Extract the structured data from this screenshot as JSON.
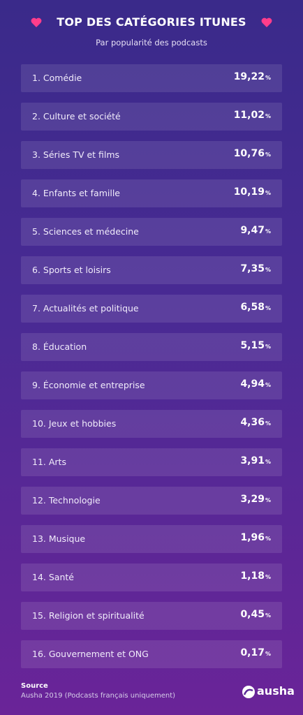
{
  "header": {
    "title": "TOP DES CATÉGORIES ITUNES",
    "subtitle": "Par popularité des podcasts"
  },
  "rows": [
    {
      "label": "1. Comédie",
      "value": "19,22",
      "unit": "%"
    },
    {
      "label": "2. Culture et société",
      "value": "11,02",
      "unit": "%"
    },
    {
      "label": "3. Séries TV et films",
      "value": "10,76",
      "unit": "%"
    },
    {
      "label": "4. Enfants et famille",
      "value": "10,19",
      "unit": "%"
    },
    {
      "label": "5. Sciences et médecine",
      "value": "9,47",
      "unit": "%"
    },
    {
      "label": "6. Sports et loisirs",
      "value": "7,35",
      "unit": "%"
    },
    {
      "label": "7. Actualités et politique",
      "value": "6,58",
      "unit": "%"
    },
    {
      "label": "8. Éducation",
      "value": "5,15",
      "unit": "%"
    },
    {
      "label": "9. Économie et entreprise",
      "value": "4,94",
      "unit": "%"
    },
    {
      "label": "10. Jeux et hobbies",
      "value": "4,36",
      "unit": "%"
    },
    {
      "label": "11. Arts",
      "value": "3,91",
      "unit": "%"
    },
    {
      "label": "12. Technologie",
      "value": "3,29",
      "unit": "%"
    },
    {
      "label": "13. Musique",
      "value": "1,96",
      "unit": "%"
    },
    {
      "label": "14. Santé",
      "value": "1,18",
      "unit": "%"
    },
    {
      "label": "15. Religion et spiritualité",
      "value": "0,45",
      "unit": "%"
    },
    {
      "label": "16. Gouvernement et ONG",
      "value": "0,17",
      "unit": "%"
    }
  ],
  "footer": {
    "source_title": "Source",
    "source_text": "Ausha 2019 (Podcasts français uniquement)",
    "brand": "ausha"
  }
}
